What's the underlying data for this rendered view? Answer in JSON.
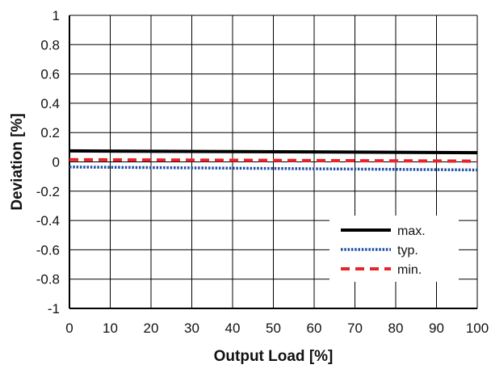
{
  "chart_data": {
    "type": "line",
    "title": "",
    "xlabel": "Output Load [%]",
    "ylabel": "Deviation [%]",
    "xlim": [
      0,
      100
    ],
    "ylim": [
      -1,
      1
    ],
    "x_ticks": [
      0,
      10,
      20,
      30,
      40,
      50,
      60,
      70,
      80,
      90,
      100
    ],
    "x_tick_labels": [
      "0",
      "10",
      "20",
      "30",
      "40",
      "50",
      "60",
      "70",
      "80",
      "90",
      "100"
    ],
    "y_ticks": [
      1,
      0.8,
      0.6,
      0.4,
      0.2,
      0,
      -0.2,
      -0.4,
      -0.6,
      -0.8,
      -1
    ],
    "y_tick_labels": [
      "1",
      "0.8",
      "0.6",
      "0.4",
      "0.2",
      "0",
      "-0.2",
      "-0.4",
      "-0.6",
      "-0.8",
      "-1"
    ],
    "grid": true,
    "legend_position": "bottom-right",
    "x": [
      0,
      100
    ],
    "series": [
      {
        "name": "max.",
        "values": [
          0.075,
          0.063
        ],
        "color": "#000000",
        "style": "solid"
      },
      {
        "name": "typ.",
        "values": [
          -0.035,
          -0.055
        ],
        "color": "#1f4fa3",
        "style": "dotted"
      },
      {
        "name": "min.",
        "values": [
          0.015,
          0.005
        ],
        "color": "#e8242a",
        "style": "dashed"
      }
    ]
  }
}
